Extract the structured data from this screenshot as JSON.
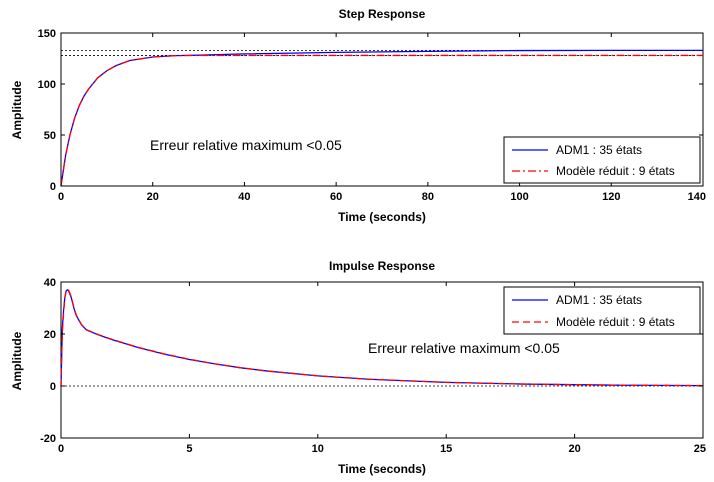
{
  "chart_data": [
    {
      "type": "line",
      "title": "Step Response",
      "xlabel": "Time (seconds)",
      "ylabel": "Amplitude",
      "xlim": [
        0,
        140
      ],
      "ylim": [
        0,
        150
      ],
      "xticks": [
        "0",
        "20",
        "40",
        "60",
        "80",
        "100",
        "120",
        "140"
      ],
      "yticks": [
        "0",
        "50",
        "100",
        "150"
      ],
      "grid": false,
      "legend": "bottom-right",
      "annotation": "Erreur relative maximum <0.05",
      "reference_lines": [
        133,
        128
      ],
      "series": [
        {
          "name": "ADM1 : 35 états",
          "color": "#0000ff",
          "dash": "solid",
          "x": [
            0,
            1,
            2,
            3,
            4,
            5,
            6,
            8,
            10,
            12,
            15,
            20,
            25,
            30,
            40,
            60,
            80,
            100,
            120,
            140
          ],
          "y": [
            0,
            30,
            51,
            67,
            79,
            88,
            95,
            106,
            113,
            118,
            123,
            126.5,
            127.8,
            128.3,
            129.5,
            131,
            132,
            132.8,
            133,
            133
          ]
        },
        {
          "name": "Modèle réduit : 9 états",
          "color": "#ff0000",
          "dash": "dashdot",
          "x": [
            0,
            1,
            2,
            3,
            4,
            5,
            6,
            8,
            10,
            12,
            15,
            20,
            25,
            30,
            40,
            60,
            80,
            100,
            120,
            140
          ],
          "y": [
            0,
            30,
            51,
            67,
            79,
            88,
            95,
            106,
            113,
            118,
            123,
            126.5,
            127.8,
            128,
            128,
            128,
            128,
            128,
            128,
            128
          ]
        }
      ]
    },
    {
      "type": "line",
      "title": "Impulse Response",
      "xlabel": "Time (seconds)",
      "ylabel": "Amplitude",
      "xlim": [
        0,
        25
      ],
      "ylim": [
        -20,
        40
      ],
      "xticks": [
        "0",
        "5",
        "10",
        "15",
        "20",
        "25"
      ],
      "yticks": [
        "-20",
        "0",
        "20",
        "40"
      ],
      "grid": false,
      "legend": "top-right",
      "annotation": "Erreur relative maximum <0.05",
      "reference_lines": [
        0
      ],
      "series": [
        {
          "name": "ADM1 : 35 états",
          "color": "#0000ff",
          "dash": "solid",
          "x": [
            0,
            0.05,
            0.1,
            0.15,
            0.2,
            0.25,
            0.3,
            0.4,
            0.5,
            0.6,
            0.8,
            1,
            1.5,
            2,
            3,
            4,
            5,
            6,
            7,
            8,
            10,
            12,
            15,
            18,
            20,
            22,
            25
          ],
          "y": [
            0,
            22,
            29,
            34,
            36.5,
            37,
            36.5,
            34,
            30,
            27,
            23.5,
            21.5,
            19.5,
            17.8,
            14.8,
            12.3,
            10.2,
            8.5,
            7,
            5.8,
            3.9,
            2.6,
            1.4,
            0.75,
            0.5,
            0.3,
            0.15
          ]
        },
        {
          "name": "Modèle réduit : 9 états",
          "color": "#ff0000",
          "dash": "dash",
          "x": [
            0,
            0.05,
            0.1,
            0.15,
            0.2,
            0.25,
            0.3,
            0.4,
            0.5,
            0.6,
            0.8,
            1,
            1.5,
            2,
            3,
            4,
            5,
            6,
            7,
            8,
            10,
            12,
            15,
            18,
            20,
            22,
            25
          ],
          "y": [
            0,
            20,
            28,
            34,
            36.8,
            37.3,
            36.8,
            34.3,
            30.2,
            27.2,
            23.6,
            21.6,
            19.6,
            17.9,
            14.9,
            12.4,
            10.3,
            8.5,
            7,
            5.8,
            3.9,
            2.6,
            1.4,
            0.75,
            0.5,
            0.3,
            0.15
          ]
        }
      ]
    }
  ]
}
